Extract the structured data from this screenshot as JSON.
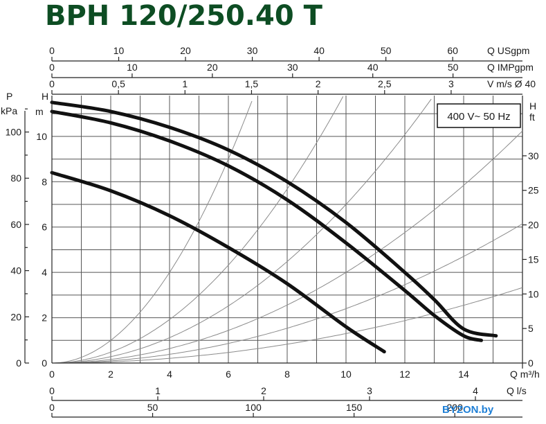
{
  "chart_data": {
    "type": "line",
    "title": "BPH 120/250.40 T",
    "annotation": "400 V~ 50 Hz",
    "watermark": "BYZON.by",
    "x_axis": {
      "label": "Q m³/h",
      "ticks": [
        0,
        2,
        4,
        6,
        8,
        10,
        12,
        14
      ],
      "range": [
        0,
        16
      ]
    },
    "y_axis_left": {
      "label": "H",
      "unit": "m",
      "ticks": [
        0,
        2,
        4,
        6,
        8,
        10
      ],
      "range": [
        0,
        11.8
      ]
    },
    "y_axis_pressure": {
      "label": "P",
      "unit": "kPa",
      "ticks": [
        0,
        20,
        40,
        60,
        80,
        100
      ]
    },
    "y_axis_right": {
      "label": "H",
      "unit": "ft",
      "ticks": [
        0,
        5,
        10,
        15,
        20,
        25,
        30
      ]
    },
    "top_axes": [
      {
        "label": "Q USgpm",
        "ticks": [
          "0",
          "10",
          "20",
          "30",
          "40",
          "50",
          "60"
        ],
        "values": [
          0,
          10,
          20,
          30,
          40,
          50,
          60
        ],
        "per_m3h": 4.4029
      },
      {
        "label": "Q IMPgpm",
        "ticks": [
          "0",
          "10",
          "20",
          "30",
          "40",
          "50"
        ],
        "values": [
          0,
          10,
          20,
          30,
          40,
          50
        ],
        "per_m3h": 3.6662
      },
      {
        "label": "V m/s Ø 40",
        "ticks": [
          "0",
          "0,5",
          "1",
          "1,5",
          "2",
          "2,5",
          "3"
        ],
        "values": [
          0,
          0.5,
          1,
          1.5,
          2,
          2.5,
          3
        ],
        "per_m3h": 0.221
      }
    ],
    "bottom_axes": [
      {
        "label": "Q l/s",
        "ticks": [
          "0",
          "1",
          "2",
          "3",
          "4"
        ],
        "values": [
          0,
          1,
          2,
          3,
          4
        ],
        "per_m3h": 0.27778
      },
      {
        "label": "",
        "ticks": [
          "0",
          "50",
          "100",
          "150",
          "200"
        ],
        "values": [
          0,
          50,
          100,
          150,
          200
        ],
        "per_m3h": 14.6
      }
    ],
    "series": [
      {
        "x": [
          0,
          2,
          4,
          6,
          8,
          10,
          12,
          13,
          14,
          15.1
        ],
        "y": [
          11.5,
          11.1,
          10.4,
          9.4,
          8.0,
          6.2,
          4.0,
          2.8,
          1.5,
          1.2
        ]
      },
      {
        "x": [
          0,
          2,
          4,
          6,
          8,
          10,
          12,
          13,
          14,
          14.6
        ],
        "y": [
          11.1,
          10.6,
          9.8,
          8.7,
          7.2,
          5.3,
          3.2,
          2.1,
          1.2,
          1.0
        ]
      },
      {
        "x": [
          0,
          2,
          4,
          6,
          8,
          10,
          11.3
        ],
        "y": [
          8.4,
          7.6,
          6.5,
          5.1,
          3.5,
          1.6,
          0.5
        ]
      }
    ],
    "system_curves_k": [
      0.25,
      0.12,
      0.07,
      0.04,
      0.024,
      0.013
    ],
    "grid": true
  }
}
